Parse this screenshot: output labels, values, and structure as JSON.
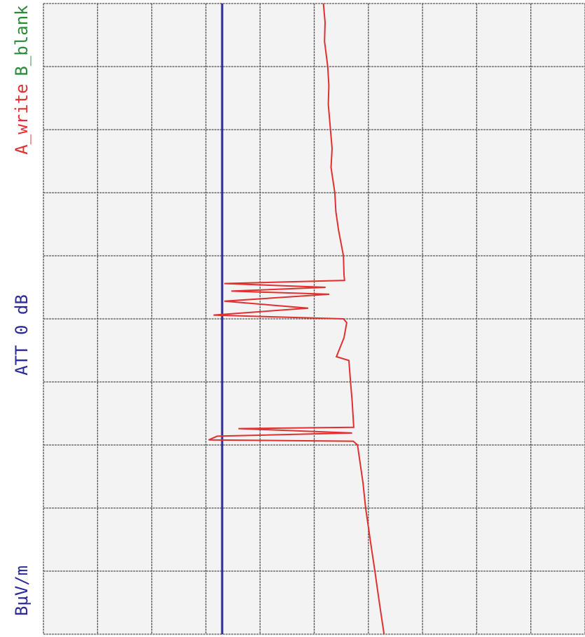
{
  "chart_data": {
    "type": "line",
    "orientation": "vertical",
    "x": [
      0.0,
      0.3,
      0.6,
      1.0,
      1.3,
      1.6,
      2.0,
      2.3,
      2.6,
      3.0,
      3.3,
      3.6,
      4.0,
      4.3,
      4.39,
      4.44,
      4.5,
      4.56,
      4.61,
      4.72,
      4.83,
      4.94,
      5.0,
      5.06,
      5.3,
      5.6,
      5.66,
      6.0,
      6.3,
      6.72,
      6.74,
      6.81,
      6.86,
      6.92,
      6.94,
      7.0,
      7.3,
      7.6,
      8.0,
      8.3,
      8.6,
      9.0,
      9.3,
      9.6,
      10.0
    ],
    "series": [
      {
        "name": "A_write",
        "color": "#e03030",
        "values": [
          5.17,
          5.2,
          5.19,
          5.25,
          5.27,
          5.26,
          5.3,
          5.33,
          5.31,
          5.38,
          5.4,
          5.45,
          5.54,
          5.55,
          5.56,
          3.34,
          5.21,
          3.47,
          5.28,
          3.34,
          4.89,
          3.14,
          5.54,
          5.6,
          5.55,
          5.41,
          5.64,
          5.67,
          5.7,
          5.73,
          3.6,
          5.7,
          3.21,
          3.05,
          5.72,
          5.8,
          5.85,
          5.9,
          5.95,
          6.0,
          6.05,
          6.12,
          6.17,
          6.22,
          6.29
        ]
      }
    ],
    "reference_line": {
      "value": 3.3,
      "color": "#2a2a9a"
    },
    "annotations": [
      {
        "text": "A_write",
        "color": "#e03030"
      },
      {
        "text": "B_blank",
        "color": "#2a8a3a"
      },
      {
        "text": "ATT 0 dB",
        "color": "#2a2a9a"
      },
      {
        "text": "BμV/m",
        "color": "#2a2a9a"
      }
    ],
    "xlim": [
      0,
      10
    ],
    "ylim": [
      0,
      10
    ],
    "xticks": [
      0,
      1,
      2,
      3,
      4,
      5,
      6,
      7,
      8,
      9,
      10
    ],
    "yticks": [
      0,
      1,
      2,
      3,
      4,
      5,
      6,
      7,
      8,
      9,
      10
    ],
    "grid": true
  }
}
